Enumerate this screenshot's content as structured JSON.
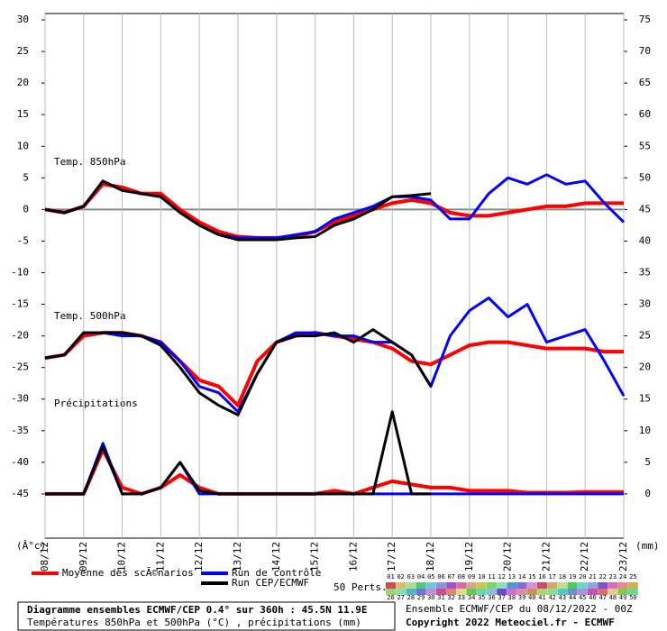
{
  "chart_data": {
    "type": "line",
    "categories": [
      "08/12",
      null,
      "09/12",
      null,
      "10/12",
      null,
      "11/12",
      null,
      "12/12",
      null,
      "13/12",
      null,
      "14/12",
      null,
      "15/12",
      null,
      "16/12",
      null,
      "17/12",
      null,
      "18/12",
      null,
      "19/12",
      null,
      "20/12",
      null,
      "21/12",
      null,
      "22/12",
      null,
      "23/12"
    ],
    "ylim": [
      -52,
      31
    ],
    "yticks": [
      -45,
      -40,
      -35,
      -30,
      -25,
      -20,
      -15,
      -10,
      -5,
      0,
      5,
      10,
      15,
      20,
      25,
      30
    ],
    "y2lim": [
      -7,
      76
    ],
    "y2ticks": [
      0,
      5,
      10,
      15,
      20,
      25,
      30,
      35,
      40,
      45,
      50,
      55,
      60,
      65,
      70,
      75
    ],
    "y_unit": "(Â°c)",
    "y2_unit": "(mm)",
    "annotations": [
      "Temp. 850hPa",
      "Temp. 500hPa",
      "Précipitations"
    ],
    "series": [
      {
        "name": "Moyenne des scÃ©narios",
        "color": "#ff0000",
        "values": [
          0,
          -0.5,
          0.5,
          4,
          3.5,
          2.5,
          2.5,
          0,
          -2,
          -3.5,
          -4.3,
          -4.5,
          -4.5,
          -4.3,
          -3.5,
          -2,
          -1,
          0,
          1,
          1.5,
          1,
          -0.5,
          -1,
          -1,
          -0.5,
          0,
          0.5,
          0.5,
          1,
          1,
          1
        ]
      },
      {
        "name": "Run de contrôle",
        "color": "#0000ff",
        "values": [
          0,
          -0.5,
          0.5,
          4.5,
          3,
          2.5,
          2,
          -0.5,
          -2.5,
          -4,
          -4.5,
          -4.5,
          -4.5,
          -4,
          -3.5,
          -1.5,
          -0.5,
          0.5,
          2,
          2,
          1.5,
          -1.5,
          -1.5,
          2.5,
          5,
          4,
          5.5,
          4,
          4.5,
          1,
          -2
        ]
      },
      {
        "name": "Run CEP/ECMWF",
        "color": "#000000",
        "values": [
          0,
          -0.5,
          0.5,
          4.5,
          3,
          2.5,
          2,
          -0.5,
          -2.5,
          -4,
          -4.8,
          -4.8,
          -4.8,
          -4.5,
          -4.3,
          -2.5,
          -1.5,
          0,
          2,
          2.2,
          2.5,
          null,
          null,
          null,
          null,
          null,
          null,
          null,
          null,
          null,
          null
        ]
      },
      {
        "color": "#ff0000",
        "values": [
          -23.5,
          -23,
          -20,
          -19.5,
          -19.5,
          -20,
          -21,
          -24,
          -27,
          -28,
          -31,
          -24,
          -21,
          -20,
          -19.5,
          -20,
          -20.5,
          -21,
          -22,
          -24,
          -24.5,
          -23,
          -21.5,
          -21,
          -21,
          -21.5,
          -22,
          -22,
          -22,
          -22.5,
          -22.5
        ]
      },
      {
        "color": "#0000ff",
        "values": [
          -23.5,
          -23,
          -19.5,
          -19.5,
          -20,
          -20,
          -21,
          -24,
          -28,
          -29,
          -32,
          -26,
          -21,
          -19.5,
          -19.5,
          -20,
          -20,
          -21,
          -21,
          -23,
          -28,
          -20,
          -16,
          -14,
          -17,
          -15,
          -21,
          -20,
          -19,
          -24,
          -29.5
        ]
      },
      {
        "color": "#000000",
        "values": [
          -23.5,
          -23,
          -19.5,
          -19.5,
          -19.5,
          -20,
          -21.5,
          -25,
          -29,
          -31,
          -32.5,
          -26,
          -21,
          -20,
          -20,
          -19.5,
          -21,
          -19,
          -21,
          -23,
          -28,
          null,
          null,
          null,
          null,
          null,
          null,
          null,
          null,
          null,
          null
        ]
      },
      {
        "color": "#ff0000",
        "axis": "y2",
        "values": [
          0,
          0,
          0,
          7,
          1,
          0,
          1,
          3,
          1,
          0,
          0,
          0,
          0,
          0,
          0,
          0.5,
          0,
          1,
          2,
          1.5,
          1,
          1,
          0.5,
          0.5,
          0.5,
          0.2,
          0.2,
          0.2,
          0.3,
          0.3,
          0.3
        ]
      },
      {
        "color": "#0000ff",
        "axis": "y2",
        "values": [
          0,
          0,
          0,
          8,
          0,
          0,
          1,
          5,
          0,
          0,
          0,
          0,
          0,
          0,
          0,
          0,
          0,
          0,
          0,
          0,
          0,
          0,
          0,
          0,
          0,
          0,
          0,
          0,
          0,
          0,
          0
        ]
      },
      {
        "color": "#000000",
        "axis": "y2",
        "values": [
          0,
          0,
          0,
          7.5,
          0,
          0,
          1,
          5,
          0.5,
          0,
          0,
          0,
          0,
          0,
          0,
          0,
          0,
          0,
          13,
          0,
          0,
          null,
          null,
          null,
          null,
          null,
          null,
          null,
          null,
          null,
          null
        ]
      }
    ],
    "perturbations_label": "50 Perts.",
    "perturbations": [
      "01",
      "02",
      "03",
      "04",
      "05",
      "06",
      "07",
      "08",
      "09",
      "10",
      "11",
      "12",
      "13",
      "14",
      "15",
      "16",
      "17",
      "18",
      "19",
      "20",
      "21",
      "22",
      "23",
      "24",
      "25",
      "26",
      "27",
      "28",
      "29",
      "30",
      "31",
      "32",
      "33",
      "34",
      "35",
      "36",
      "37",
      "38",
      "39",
      "40",
      "41",
      "42",
      "43",
      "44",
      "45",
      "46",
      "47",
      "48",
      "49",
      "50"
    ],
    "footer": {
      "title": "Diagramme ensembles ECMWF/CEP 0.4° sur 360h : 45.5N 11.9E",
      "subtitle": "Températures 850hPa et 500hPa (°C) , précipitations (mm)",
      "run": "Ensemble ECMWF/CEP du 08/12/2022 - 00Z",
      "copyright": "Copyright 2022 Meteociel.fr - ECMWF"
    }
  }
}
